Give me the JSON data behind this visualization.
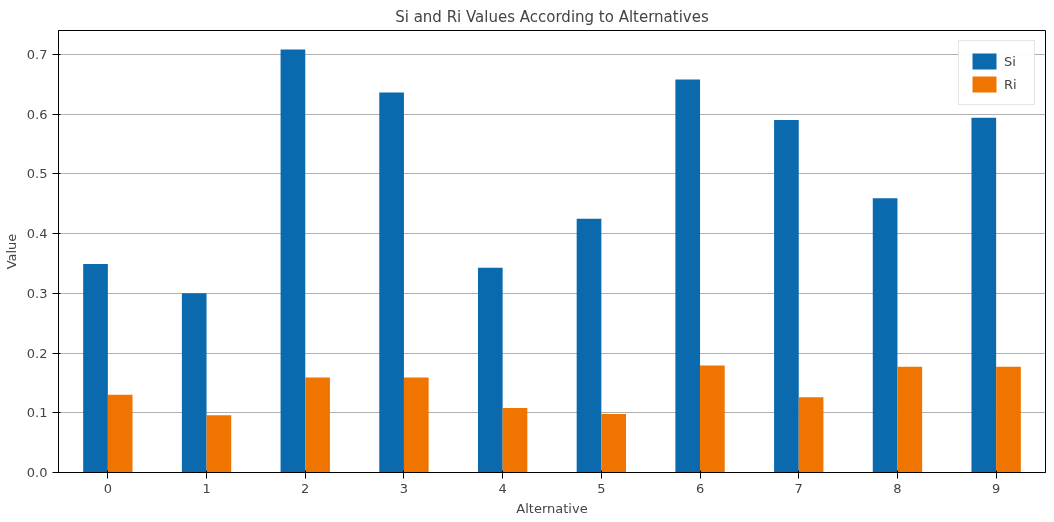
{
  "chart_data": {
    "type": "bar",
    "title": "Si and Ri Values According to Alternatives",
    "xlabel": "Alternative",
    "ylabel": "Value",
    "categories": [
      "0",
      "1",
      "2",
      "3",
      "4",
      "5",
      "6",
      "7",
      "8",
      "9"
    ],
    "series": [
      {
        "name": "Si",
        "color": "#0a6aad",
        "values": [
          0.349,
          0.3,
          0.708,
          0.636,
          0.343,
          0.425,
          0.658,
          0.59,
          0.459,
          0.594
        ]
      },
      {
        "name": "Ri",
        "color": "#f07400",
        "values": [
          0.13,
          0.096,
          0.159,
          0.159,
          0.108,
          0.098,
          0.179,
          0.126,
          0.177,
          0.177
        ]
      }
    ],
    "ylim": [
      0,
      0.74
    ],
    "yticks": [
      {
        "value": 0,
        "label": "0.0"
      },
      0.1,
      0.2,
      0.3,
      0.4,
      0.5,
      0.6,
      0.7
    ],
    "grid": "y",
    "legend": "top right"
  }
}
